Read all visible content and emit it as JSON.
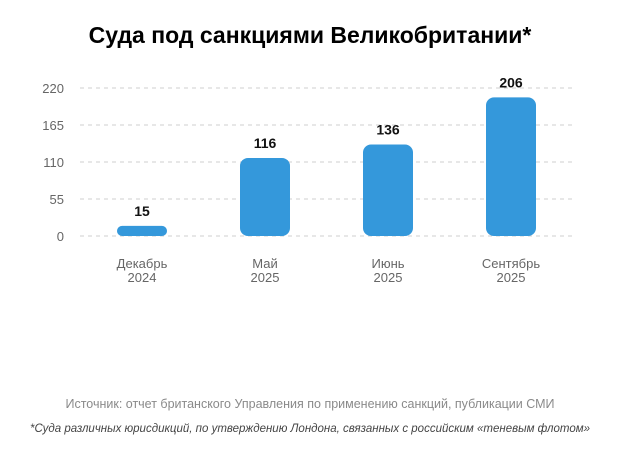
{
  "chart_data": {
    "type": "bar",
    "title": "Суда под санкциями Великобритании*",
    "categories": [
      [
        "Декабрь",
        "2024"
      ],
      [
        "Май",
        "2025"
      ],
      [
        "Июнь",
        "2025"
      ],
      [
        "Сентябрь",
        "2025"
      ]
    ],
    "values": [
      15,
      116,
      136,
      206
    ],
    "yticks": [
      0,
      55,
      110,
      165,
      220
    ],
    "ylim": [
      0,
      220
    ],
    "grid": true,
    "bar_color": "#3498db"
  },
  "source": "Источник: отчет британского Управления по применению санкций, публикации СМИ",
  "footnote": "*Суда различных юрисдикций, по утверждению Лондона, связанных с российским «теневым флотом»"
}
